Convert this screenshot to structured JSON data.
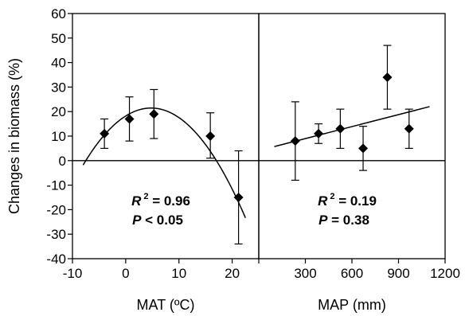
{
  "ylabel": "Changes in biomass (%)",
  "yticks": [
    -40,
    -30,
    -20,
    -10,
    0,
    10,
    20,
    30,
    40,
    50,
    60
  ],
  "chart_data": [
    {
      "type": "scatter",
      "xlabel": "MAT (ºC)",
      "ylabel": "Changes in biomass (%)",
      "xlim": [
        -10,
        25
      ],
      "ylim": [
        -40,
        60
      ],
      "xticks": [
        -10,
        0,
        10,
        20
      ],
      "xticks_labels": [
        "-10",
        "0",
        "10",
        "20"
      ],
      "points": [
        {
          "x": -4.0,
          "y": 11,
          "low": 5,
          "high": 17
        },
        {
          "x": 0.7,
          "y": 17,
          "low": 8,
          "high": 26
        },
        {
          "x": 5.3,
          "y": 19,
          "low": 9,
          "high": 29
        },
        {
          "x": 15.9,
          "y": 10,
          "low": 1,
          "high": 19.5
        },
        {
          "x": 21.2,
          "y": -15,
          "low": -34,
          "high": 4
        }
      ],
      "fit": {
        "type": "quadratic",
        "a": -0.1425,
        "b": 1.36,
        "c": 18.2,
        "x_range": [
          -8,
          22.5
        ]
      },
      "annotation": {
        "r2_label": "R",
        "r2_sup": "2",
        "r2_value": " = 0.96",
        "p_label": "P",
        "p_value": " < 0.05"
      }
    },
    {
      "type": "scatter",
      "xlabel": "MAP (mm)",
      "xlim": [
        0,
        1200
      ],
      "ylim": [
        -40,
        60
      ],
      "xticks": [
        0,
        300,
        600,
        900,
        1200
      ],
      "xticks_labels": [
        "",
        "300",
        "600",
        "900",
        "1200"
      ],
      "points": [
        {
          "x": 235,
          "y": 8,
          "low": -8,
          "high": 24
        },
        {
          "x": 385,
          "y": 11,
          "low": 7,
          "high": 15
        },
        {
          "x": 525,
          "y": 13,
          "low": 5,
          "high": 21
        },
        {
          "x": 672,
          "y": 5,
          "low": -4,
          "high": 14
        },
        {
          "x": 828,
          "y": 34,
          "low": 21,
          "high": 47
        },
        {
          "x": 968,
          "y": 13,
          "low": 5,
          "high": 21
        }
      ],
      "fit": {
        "type": "linear",
        "slope": 0.0163,
        "intercept": 4.1,
        "x_range": [
          100,
          1100
        ]
      },
      "annotation": {
        "r2_label": "R",
        "r2_sup": "2",
        "r2_value": " = 0.19",
        "p_label": "P",
        "p_value": " = 0.38"
      }
    }
  ]
}
